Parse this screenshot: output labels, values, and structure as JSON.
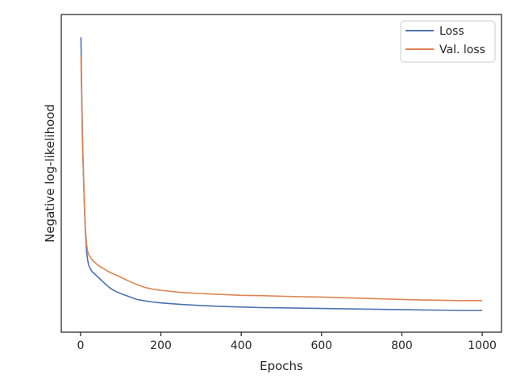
{
  "chart_data": {
    "type": "line",
    "title": "",
    "xlabel": "Epochs",
    "ylabel": "Negative log-likelihood",
    "xlim": [
      -48,
      1048
    ],
    "ylim": [
      0.0,
      1.0
    ],
    "y_ticks_shown": false,
    "x_ticks": [
      0,
      200,
      400,
      600,
      800,
      1000
    ],
    "x_tick_labels": [
      "0",
      "200",
      "400",
      "600",
      "800",
      "1000"
    ],
    "grid": false,
    "legend_position": "upper right",
    "series": [
      {
        "name": "Loss",
        "color": "#4c72b0",
        "x": [
          1,
          3,
          5,
          8,
          10,
          12,
          15,
          18,
          20,
          25,
          30,
          35,
          40,
          50,
          60,
          70,
          80,
          90,
          100,
          120,
          140,
          160,
          180,
          200,
          250,
          300,
          350,
          400,
          450,
          500,
          550,
          600,
          650,
          700,
          750,
          800,
          850,
          900,
          950,
          1000
        ],
        "y": [
          0.955,
          0.76,
          0.6,
          0.45,
          0.36,
          0.29,
          0.22,
          0.19,
          0.175,
          0.16,
          0.15,
          0.145,
          0.138,
          0.125,
          0.112,
          0.1,
          0.09,
          0.083,
          0.077,
          0.067,
          0.057,
          0.052,
          0.048,
          0.045,
          0.04,
          0.036,
          0.033,
          0.031,
          0.029,
          0.028,
          0.027,
          0.026,
          0.025,
          0.024,
          0.023,
          0.022,
          0.021,
          0.02,
          0.019,
          0.019
        ]
      },
      {
        "name": "Val. loss",
        "color": "#dd8452",
        "x": [
          1,
          3,
          5,
          8,
          10,
          12,
          15,
          18,
          20,
          25,
          30,
          35,
          40,
          50,
          60,
          70,
          80,
          90,
          100,
          120,
          140,
          160,
          180,
          200,
          250,
          300,
          350,
          400,
          450,
          500,
          550,
          600,
          650,
          700,
          750,
          800,
          850,
          900,
          950,
          1000
        ],
        "y": [
          0.89,
          0.73,
          0.58,
          0.45,
          0.37,
          0.3,
          0.245,
          0.22,
          0.21,
          0.2,
          0.19,
          0.185,
          0.178,
          0.168,
          0.16,
          0.152,
          0.145,
          0.14,
          0.133,
          0.12,
          0.108,
          0.098,
          0.092,
          0.088,
          0.081,
          0.077,
          0.074,
          0.071,
          0.07,
          0.068,
          0.066,
          0.065,
          0.063,
          0.061,
          0.059,
          0.057,
          0.055,
          0.054,
          0.053,
          0.053
        ]
      }
    ]
  }
}
